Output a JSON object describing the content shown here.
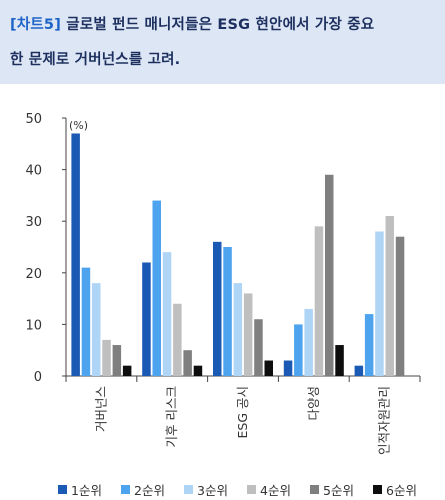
{
  "header": {
    "tag": "[차트5]",
    "title_line1": "글로벌 펀드 매니저들은 ESG 현안에서 가장 중요",
    "title_line2": "한 문제로 거버넌스를 고려."
  },
  "chart_data": {
    "type": "bar",
    "unit_label": "(%)",
    "categories": [
      "거버넌스",
      "기후 리스크",
      "ESG 공시",
      "다양성",
      "인적자원관리"
    ],
    "ylim": [
      0,
      50
    ],
    "yticks": [
      0,
      10,
      20,
      30,
      40,
      50
    ],
    "grid": false,
    "legend_position": "bottom",
    "series": [
      {
        "name": "1순위",
        "color": "#1a5ab5",
        "values": [
          47,
          22,
          26,
          3,
          2
        ]
      },
      {
        "name": "2순위",
        "color": "#4da3ee",
        "values": [
          21,
          34,
          25,
          10,
          12
        ]
      },
      {
        "name": "3순위",
        "color": "#aed4f6",
        "values": [
          18,
          24,
          18,
          13,
          28
        ]
      },
      {
        "name": "4순위",
        "color": "#bfbfbf",
        "values": [
          7,
          14,
          16,
          29,
          31
        ]
      },
      {
        "name": "5순위",
        "color": "#7f7f7f",
        "values": [
          6,
          5,
          11,
          39,
          27
        ]
      },
      {
        "name": "6순위",
        "color": "#0d0d0d",
        "values": [
          2,
          2,
          3,
          6,
          0
        ]
      }
    ]
  }
}
